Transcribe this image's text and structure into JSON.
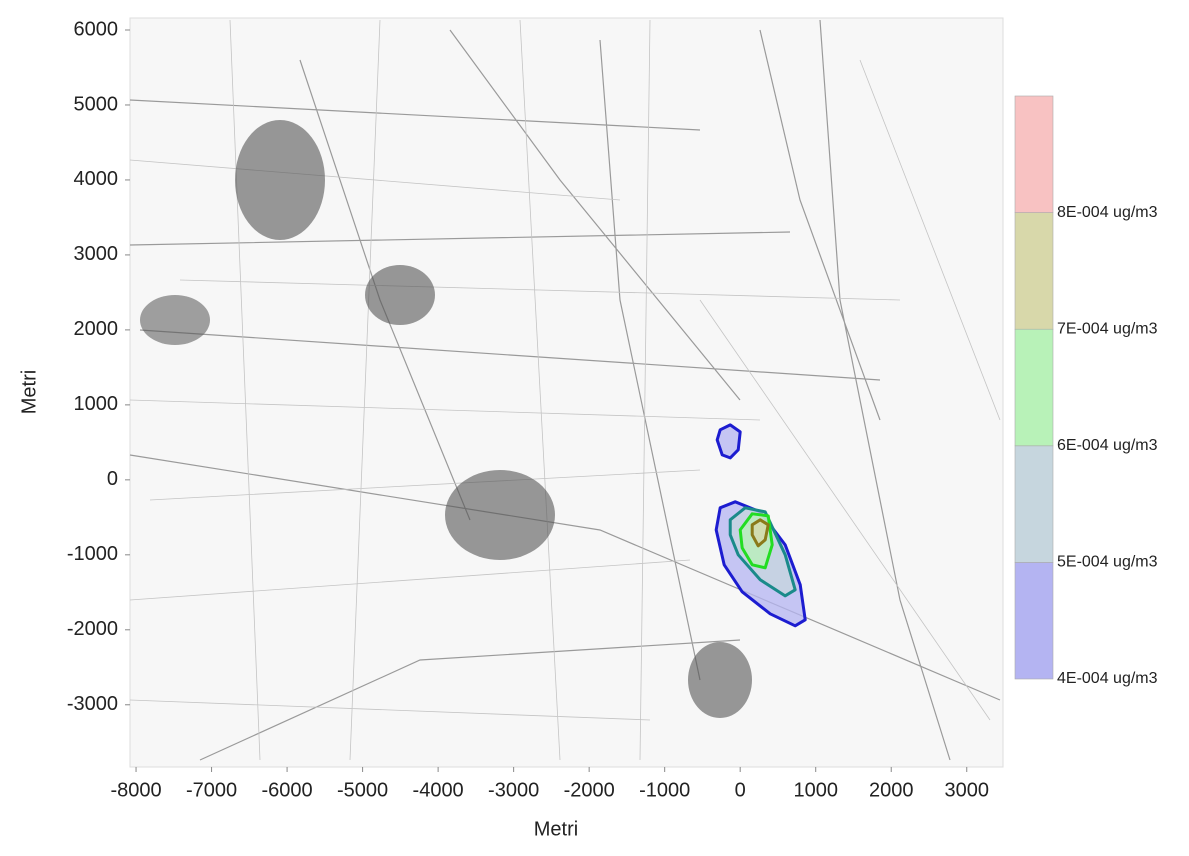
{
  "chart_data": {
    "type": "contour",
    "xlabel": "Metri",
    "ylabel": "Metri",
    "xlim": [
      -8080,
      3480
    ],
    "ylim": [
      -3830,
      6160
    ],
    "xticks": [
      -8000,
      -7000,
      -6000,
      -5000,
      -4000,
      -3000,
      -2000,
      -1000,
      0,
      1000,
      2000,
      3000
    ],
    "yticks": [
      -3000,
      -2000,
      -1000,
      0,
      1000,
      2000,
      3000,
      4000,
      5000,
      6000
    ],
    "clim": [
      0.0004,
      0.0009
    ],
    "levels": [
      {
        "value": 0.0004,
        "label": "4E-004 ug/m3"
      },
      {
        "value": 0.0005,
        "label": "5E-004 ug/m3"
      },
      {
        "value": 0.0006,
        "label": "6E-004 ug/m3"
      },
      {
        "value": 0.0007,
        "label": "7E-004 ug/m3"
      },
      {
        "value": 0.0008,
        "label": "8E-004 ug/m3"
      }
    ],
    "band_colors": [
      "#b4b4f2",
      "#c6d6de",
      "#b8f2b8",
      "#d8d8aa",
      "#f8c2c2"
    ],
    "line_colors": [
      "#1c1cd0",
      "#1a8a8a",
      "#22dd22",
      "#8a7a1a",
      "#d04040"
    ],
    "contours": [
      {
        "level": 0,
        "x": [
          -265,
          -132,
          0,
          -26,
          -132,
          -238,
          -305
        ],
        "y": [
          667,
          733,
          640,
          400,
          293,
          333,
          533
        ]
      },
      {
        "level": 0,
        "x": [
          -265,
          -66,
          265,
          596,
          795,
          861,
          728,
          397,
          26,
          -212,
          -318
        ],
        "y": [
          -373,
          -293,
          -427,
          -867,
          -1400,
          -1867,
          -1947,
          -1787,
          -1493,
          -1133,
          -667
        ]
      },
      {
        "level": 1,
        "x": [
          -132,
          66,
          331,
          596,
          728,
          596,
          265,
          -26,
          -132
        ],
        "y": [
          -533,
          -373,
          -427,
          -1000,
          -1467,
          -1547,
          -1333,
          -1000,
          -733
        ]
      },
      {
        "level": 2,
        "x": [
          0,
          159,
          371,
          424,
          331,
          159,
          26
        ],
        "y": [
          -667,
          -453,
          -480,
          -867,
          -1173,
          -1133,
          -907
        ]
      },
      {
        "level": 3,
        "x": [
          159,
          265,
          371,
          331,
          238,
          159
        ],
        "y": [
          -600,
          -533,
          -600,
          -800,
          -880,
          -733
        ]
      }
    ]
  }
}
